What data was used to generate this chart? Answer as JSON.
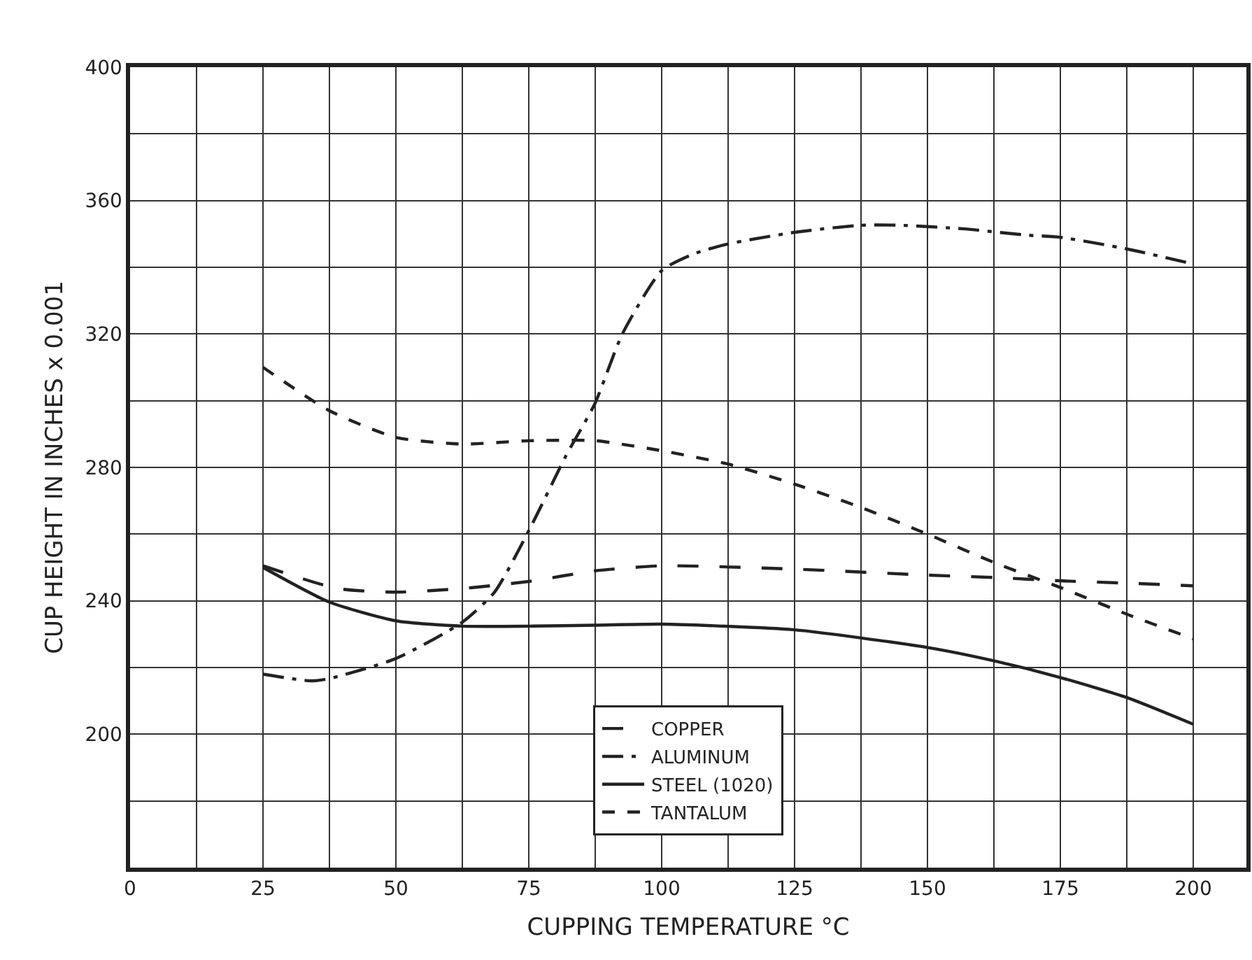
{
  "chart_data": {
    "type": "line",
    "xlabel": "CUPPING TEMPERATURE °C",
    "ylabel": "CUP HEIGHT IN INCHES x 0.001",
    "xlim": [
      0,
      210
    ],
    "ylim": [
      160,
      400
    ],
    "xticks": [
      0,
      {
        "value": 12.5,
        "label": null
      },
      25,
      {
        "value": 37.5,
        "label": null
      },
      50,
      {
        "value": 62.5,
        "label": null
      },
      75,
      {
        "value": 87.5,
        "label": null
      },
      100,
      {
        "value": 112.5,
        "label": null
      },
      125,
      {
        "value": 137.5,
        "label": null
      },
      150,
      {
        "value": 162.5,
        "label": null
      },
      175,
      {
        "value": 187.5,
        "label": null
      },
      200
    ],
    "yticks": [
      {
        "value": 160,
        "label": null
      },
      {
        "value": 180,
        "label": null
      },
      200,
      {
        "value": 220,
        "label": null
      },
      240,
      {
        "value": 260,
        "label": null
      },
      280,
      {
        "value": 300,
        "label": null
      },
      320,
      {
        "value": 340,
        "label": null
      },
      360,
      {
        "value": 380,
        "label": null
      },
      400
    ],
    "grid": true,
    "legend": "bottom",
    "marker": "none",
    "series": [
      {
        "name": "COPPER",
        "color": "#222222",
        "line_style": "dashed",
        "x": [
          25,
          39,
          50,
          62.5,
          75,
          87.5,
          100,
          125,
          150,
          162.5,
          175,
          187.5,
          200
        ],
        "values": [
          250.5,
          243.7,
          242.6,
          243.7,
          245.8,
          249,
          250.5,
          249.5,
          247.7,
          247,
          246,
          245.3,
          244.5
        ]
      },
      {
        "name": "ALUMINUM",
        "color": "#222222",
        "line_style": "dashed",
        "x": [
          25,
          34,
          37.5,
          50,
          62.5,
          68.6,
          75,
          82,
          87.4,
          92.6,
          100,
          106,
          112.5,
          125,
          137.5,
          145,
          157,
          169,
          175,
          187.5,
          200
        ],
        "values": [
          218,
          216,
          216.7,
          222.7,
          233.6,
          242.7,
          261,
          283.5,
          299,
          320,
          339,
          344,
          347,
          350.5,
          352.6,
          352.6,
          351.5,
          349.6,
          349,
          345.5,
          341
        ]
      },
      {
        "name": "STEEL (1020)",
        "color": "#222222",
        "line_style": "solid",
        "x": [
          25,
          37.5,
          50,
          62.5,
          75,
          87.5,
          100,
          125,
          150,
          162.5,
          175,
          187.5,
          200
        ],
        "values": [
          250,
          239.6,
          234,
          232.4,
          232.4,
          232.7,
          233,
          231.3,
          226,
          222,
          217,
          211,
          203
        ]
      },
      {
        "name": "TANTALUM",
        "color": "#222222",
        "line_style": "dashed",
        "x": [
          25,
          37.5,
          50,
          62.5,
          75,
          87.5,
          100,
          112.5,
          125,
          137.5,
          150,
          162.5,
          175,
          187.5,
          200
        ],
        "values": [
          310,
          297,
          289,
          287,
          288,
          288,
          285,
          281,
          275,
          268,
          260,
          251.5,
          244,
          236,
          228.6
        ]
      }
    ]
  }
}
